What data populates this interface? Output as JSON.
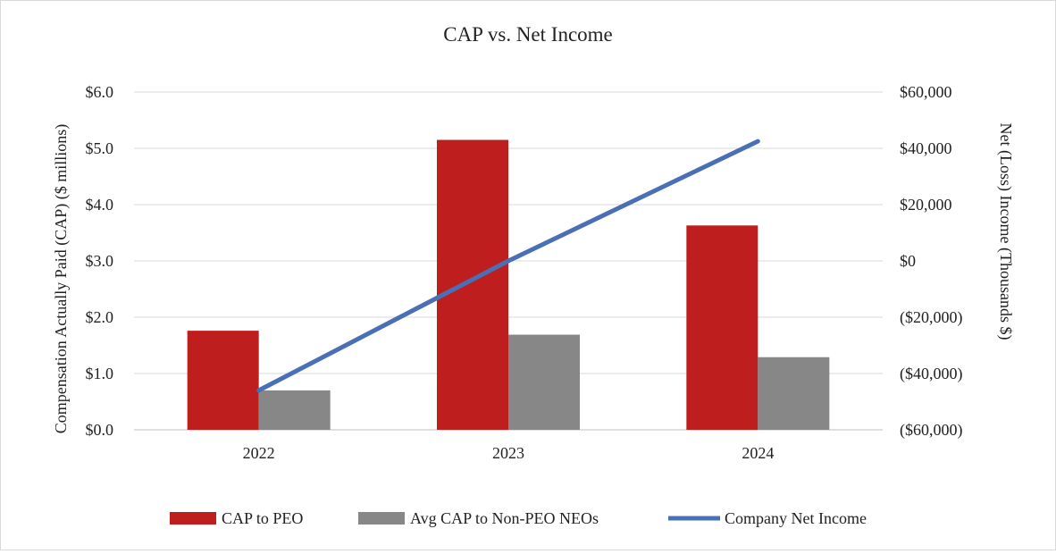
{
  "chart_data": {
    "type": "bar",
    "title": "CAP vs. Net Income",
    "categories": [
      "2022",
      "2023",
      "2024"
    ],
    "series": [
      {
        "name": "CAP to PEO",
        "kind": "bar",
        "axis": "left",
        "color": "#be1e1e",
        "values": [
          1.76,
          5.15,
          3.63
        ]
      },
      {
        "name": "Avg CAP to Non-PEO NEOs",
        "kind": "bar",
        "axis": "left",
        "color": "#878787",
        "values": [
          0.7,
          1.69,
          1.29
        ]
      },
      {
        "name": "Company Net Income",
        "kind": "line",
        "axis": "right",
        "color": "#4a6fb5",
        "values": [
          -46000,
          0,
          42500
        ]
      }
    ],
    "ylabel": "Compensation Actually Paid (CAP) ($ millions)",
    "ylim": [
      0,
      6
    ],
    "yticks": [
      0,
      1,
      2,
      3,
      4,
      5,
      6
    ],
    "ytick_labels": [
      "$0.0",
      "$1.0",
      "$2.0",
      "$3.0",
      "$4.0",
      "$5.0",
      "$6.0"
    ],
    "y2label": "Net (Loss) Income (Thousands $)",
    "y2lim": [
      -60000,
      60000
    ],
    "y2ticks": [
      -60000,
      -40000,
      -20000,
      0,
      20000,
      40000,
      60000
    ],
    "y2tick_labels": [
      "($60,000)",
      "($40,000)",
      "($20,000)",
      "$0",
      "$20,000",
      "$40,000",
      "$60,000"
    ],
    "grid": true,
    "legend": "bottom"
  }
}
